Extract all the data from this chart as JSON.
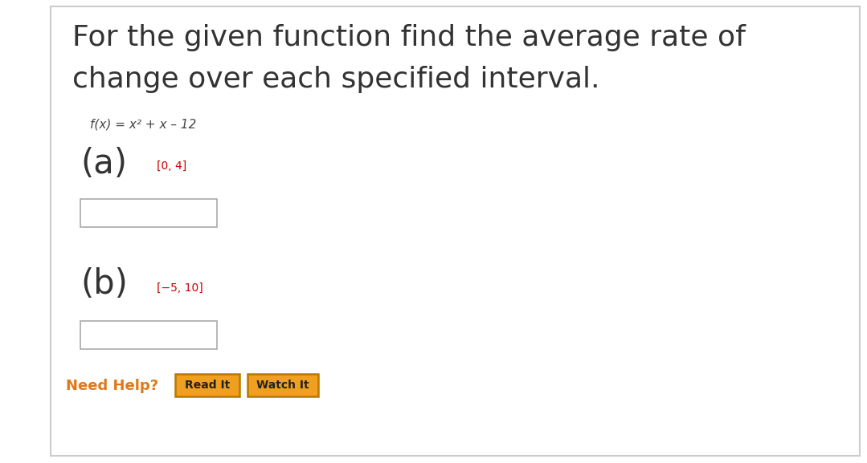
{
  "bg_color": "#ffffff",
  "border_color": "#cccccc",
  "title_line1": "For the given function find the average rate of",
  "title_line2": "change over each specified interval.",
  "title_color": "#333333",
  "title_fontsize": 26,
  "function_text": "f(x) = x² + x – 12",
  "function_fontsize": 11,
  "function_color": "#444444",
  "part_a_label": "(a)",
  "part_a_color": "#333333",
  "part_a_fontsize": 30,
  "part_a_interval": "[0, 4]",
  "part_a_interval_color": "#cc0000",
  "part_a_interval_fontsize": 10,
  "part_b_label": "(b)",
  "part_b_color": "#333333",
  "part_b_fontsize": 30,
  "part_b_interval": "[−5, 10]",
  "part_b_interval_color": "#cc0000",
  "part_b_interval_fontsize": 10,
  "input_box_color": "#ffffff",
  "input_box_border": "#aaaaaa",
  "need_help_text": "Need Help?",
  "need_help_color": "#e07818",
  "need_help_fontsize": 13,
  "button_read_text": "Read It",
  "button_watch_text": "Watch It",
  "button_bg": "#f0a020",
  "button_border": "#b87800",
  "button_text_color": "#222222",
  "button_fontsize": 10
}
